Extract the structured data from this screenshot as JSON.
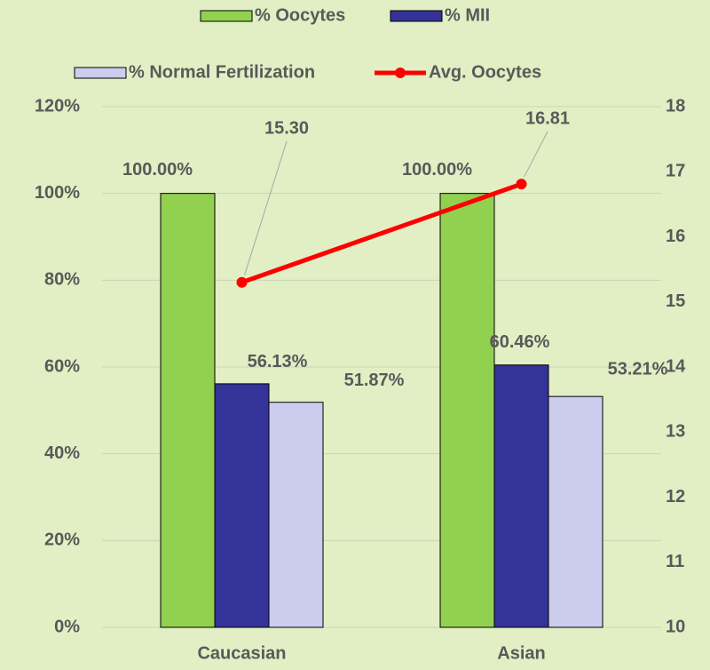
{
  "chart_data": {
    "type": "bar",
    "categories": [
      "Caucasian",
      "Asian"
    ],
    "series": [
      {
        "name": "% Oocytes",
        "color": "#92d050",
        "values": [
          100,
          100
        ],
        "value_labels": [
          "100.00%",
          "100.00%"
        ]
      },
      {
        "name": "% MII",
        "color": "#333399",
        "values": [
          56.13,
          60.46
        ],
        "value_labels": [
          "56.13%",
          "60.46%"
        ]
      },
      {
        "name": "% Normal Fertilization",
        "color": "#ccccee",
        "values": [
          51.87,
          53.21
        ],
        "value_labels": [
          "51.87%",
          "53.21%"
        ]
      },
      {
        "name": "Avg. Oocytes",
        "type": "line",
        "axis": "y2",
        "color": "#ff0000",
        "values": [
          15.3,
          16.81
        ],
        "value_labels": [
          "15.30",
          "16.81"
        ]
      }
    ],
    "ylim": [
      0,
      120
    ],
    "yticks": [
      {
        "value": 0,
        "label": "0%"
      },
      {
        "value": 20,
        "label": "20%"
      },
      {
        "value": 40,
        "label": "40%"
      },
      {
        "value": 60,
        "label": "60%"
      },
      {
        "value": 80,
        "label": "80%"
      },
      {
        "value": 100,
        "label": "100%"
      },
      {
        "value": 120,
        "label": "120%"
      }
    ],
    "y2lim": [
      10,
      18
    ],
    "y2ticks": [
      10,
      11,
      12,
      13,
      14,
      15,
      16,
      17,
      18
    ],
    "grid": true
  }
}
